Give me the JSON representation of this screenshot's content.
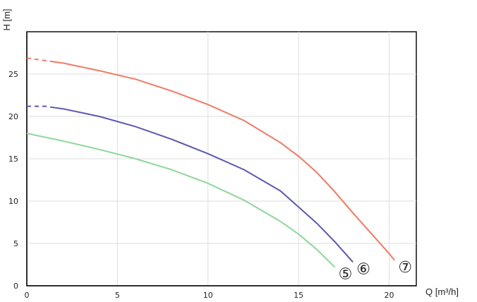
{
  "chart_data": {
    "type": "line",
    "xlabel": "Q [m³/h]",
    "ylabel": "H [m]",
    "xlim": [
      0,
      21.5
    ],
    "ylim": [
      0,
      30
    ],
    "x_ticks": [
      0,
      5,
      10,
      15,
      20
    ],
    "y_ticks": [
      0,
      5,
      10,
      15,
      20,
      25
    ],
    "grid": true,
    "series": [
      {
        "name": "⑤",
        "color": "#8fd69a",
        "x": [
          0,
          2,
          4,
          6,
          8,
          10,
          12,
          14,
          15,
          16,
          17
        ],
        "y": [
          18.0,
          17.1,
          16.1,
          15.0,
          13.7,
          12.1,
          10.1,
          7.6,
          6.1,
          4.3,
          2.2
        ]
      },
      {
        "name": "⑥",
        "color": "#5d57b3",
        "x": [
          0,
          1,
          2,
          4,
          6,
          8,
          10,
          12,
          14,
          15,
          16,
          17,
          18
        ],
        "y": [
          21.2,
          21.2,
          20.9,
          20.0,
          18.8,
          17.3,
          15.6,
          13.7,
          11.2,
          9.3,
          7.4,
          5.2,
          2.8
        ],
        "dashed_until_x": 1.3
      },
      {
        "name": "⑦",
        "color": "#f07a63",
        "x": [
          0,
          2,
          4,
          6,
          8,
          10,
          12,
          14,
          15,
          16,
          17,
          18,
          19,
          20,
          20.3
        ],
        "y": [
          26.9,
          26.3,
          25.4,
          24.4,
          23.0,
          21.4,
          19.5,
          16.9,
          15.3,
          13.4,
          11.1,
          8.6,
          6.2,
          3.8,
          3.0
        ],
        "dashed_until_x": 1.3
      }
    ]
  }
}
